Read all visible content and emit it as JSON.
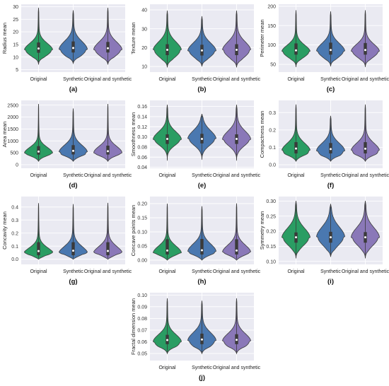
{
  "figure": {
    "palette": {
      "Original": "#2a9d63",
      "Synthetic": "#4a78b0",
      "Original and synthetic": "#8a78b8"
    },
    "plot_background": "#eaeaf2",
    "grid_color": "#ffffff"
  },
  "chart_data": [
    {
      "type": "violin",
      "panel_label": "(a)",
      "ylabel": "Radius mean",
      "categories": [
        "Original",
        "Synthetic",
        "Original and synthetic"
      ],
      "ylim": [
        4,
        31
      ],
      "yticks": [
        5,
        10,
        15,
        20,
        25,
        30
      ],
      "tick_decimals": 0,
      "grid": true,
      "series": [
        {
          "category": "Original",
          "min": 7,
          "q1": 11.7,
          "median": 13.4,
          "q3": 15.8,
          "max": 29.5,
          "mode": 12.7,
          "spread": 2.2
        },
        {
          "category": "Synthetic",
          "min": 7.5,
          "q1": 11.8,
          "median": 13.6,
          "q3": 16.2,
          "max": 28.5,
          "mode": 13.0,
          "spread": 2.6
        },
        {
          "category": "Original and synthetic",
          "min": 7,
          "q1": 11.8,
          "median": 13.5,
          "q3": 16,
          "max": 29.5,
          "mode": 12.9,
          "spread": 2.5
        }
      ]
    },
    {
      "type": "violin",
      "panel_label": "(b)",
      "ylabel": "Texture mean",
      "categories": [
        "Original",
        "Synthetic",
        "Original and synthetic"
      ],
      "ylim": [
        7,
        43
      ],
      "yticks": [
        10,
        20,
        30,
        40
      ],
      "tick_decimals": 0,
      "grid": true,
      "series": [
        {
          "category": "Original",
          "min": 9.5,
          "q1": 16,
          "median": 18.8,
          "q3": 21.8,
          "max": 39.5,
          "mode": 18.5,
          "spread": 3.6
        },
        {
          "category": "Synthetic",
          "min": 10,
          "q1": 15.8,
          "median": 18.5,
          "q3": 21.5,
          "max": 36.5,
          "mode": 18.2,
          "spread": 3.4
        },
        {
          "category": "Original and synthetic",
          "min": 9.5,
          "q1": 16,
          "median": 18.8,
          "q3": 21.8,
          "max": 39.5,
          "mode": 18.5,
          "spread": 3.6
        }
      ]
    },
    {
      "type": "violin",
      "panel_label": "(c)",
      "ylabel": "Perimeter mean",
      "categories": [
        "Original",
        "Synthetic",
        "Original and synthetic"
      ],
      "ylim": [
        30,
        205
      ],
      "yticks": [
        50,
        100,
        150,
        200
      ],
      "tick_decimals": 0,
      "grid": true,
      "series": [
        {
          "category": "Original",
          "min": 43,
          "q1": 75,
          "median": 86,
          "q3": 104,
          "max": 189,
          "mode": 82,
          "spread": 14
        },
        {
          "category": "Synthetic",
          "min": 45,
          "q1": 75,
          "median": 87,
          "q3": 106,
          "max": 186,
          "mode": 84,
          "spread": 16
        },
        {
          "category": "Original and synthetic",
          "min": 43,
          "q1": 75,
          "median": 87,
          "q3": 105,
          "max": 189,
          "mode": 83,
          "spread": 15
        }
      ]
    },
    {
      "type": "violin",
      "panel_label": "(d)",
      "ylabel": "Area mean",
      "categories": [
        "Original",
        "Synthetic",
        "Original and synthetic"
      ],
      "ylim": [
        -150,
        2700
      ],
      "yticks": [
        0,
        500,
        1000,
        1500,
        2000,
        2500
      ],
      "tick_decimals": 0,
      "grid": true,
      "series": [
        {
          "category": "Original",
          "min": 140,
          "q1": 420,
          "median": 550,
          "q3": 780,
          "max": 2550,
          "mode": 480,
          "spread": 200
        },
        {
          "category": "Synthetic",
          "min": 140,
          "q1": 430,
          "median": 580,
          "q3": 820,
          "max": 2350,
          "mode": 520,
          "spread": 240
        },
        {
          "category": "Original and synthetic",
          "min": 140,
          "q1": 425,
          "median": 565,
          "q3": 800,
          "max": 2550,
          "mode": 500,
          "spread": 220
        }
      ]
    },
    {
      "type": "violin",
      "panel_label": "(e)",
      "ylabel": "Smoothness mean",
      "categories": [
        "Original",
        "Synthetic",
        "Original and synthetic"
      ],
      "ylim": [
        0.038,
        0.172
      ],
      "yticks": [
        0.04,
        0.06,
        0.08,
        0.1,
        0.12,
        0.14,
        0.16
      ],
      "tick_decimals": 2,
      "grid": true,
      "series": [
        {
          "category": "Original",
          "min": 0.053,
          "q1": 0.086,
          "median": 0.096,
          "q3": 0.105,
          "max": 0.163,
          "mode": 0.095,
          "spread": 0.012
        },
        {
          "category": "Synthetic",
          "min": 0.055,
          "q1": 0.087,
          "median": 0.096,
          "q3": 0.106,
          "max": 0.145,
          "mode": 0.096,
          "spread": 0.013
        },
        {
          "category": "Original and synthetic",
          "min": 0.053,
          "q1": 0.086,
          "median": 0.096,
          "q3": 0.105,
          "max": 0.163,
          "mode": 0.095,
          "spread": 0.013
        }
      ]
    },
    {
      "type": "violin",
      "panel_label": "(f)",
      "ylabel": "Compactness mean",
      "categories": [
        "Original",
        "Synthetic",
        "Original and synthetic"
      ],
      "ylim": [
        -0.02,
        0.37
      ],
      "yticks": [
        0.0,
        0.1,
        0.2,
        0.3
      ],
      "tick_decimals": 1,
      "grid": true,
      "series": [
        {
          "category": "Original",
          "min": 0.02,
          "q1": 0.065,
          "median": 0.093,
          "q3": 0.13,
          "max": 0.345,
          "mode": 0.08,
          "spread": 0.035
        },
        {
          "category": "Synthetic",
          "min": 0.02,
          "q1": 0.065,
          "median": 0.09,
          "q3": 0.125,
          "max": 0.28,
          "mode": 0.08,
          "spread": 0.035
        },
        {
          "category": "Original and synthetic",
          "min": 0.02,
          "q1": 0.065,
          "median": 0.092,
          "q3": 0.13,
          "max": 0.345,
          "mode": 0.08,
          "spread": 0.035
        }
      ]
    },
    {
      "type": "violin",
      "panel_label": "(g)",
      "ylabel": "Concavity mean",
      "categories": [
        "Original",
        "Synthetic",
        "Original and synthetic"
      ],
      "ylim": [
        -0.04,
        0.48
      ],
      "yticks": [
        0.0,
        0.1,
        0.2,
        0.3,
        0.4
      ],
      "tick_decimals": 1,
      "grid": true,
      "series": [
        {
          "category": "Original",
          "min": 0.0,
          "q1": 0.03,
          "median": 0.062,
          "q3": 0.13,
          "max": 0.43,
          "mode": 0.035,
          "spread": 0.04
        },
        {
          "category": "Synthetic",
          "min": 0.0,
          "q1": 0.03,
          "median": 0.065,
          "q3": 0.13,
          "max": 0.42,
          "mode": 0.04,
          "spread": 0.045
        },
        {
          "category": "Original and synthetic",
          "min": 0.0,
          "q1": 0.03,
          "median": 0.063,
          "q3": 0.13,
          "max": 0.43,
          "mode": 0.04,
          "spread": 0.045
        }
      ]
    },
    {
      "type": "violin",
      "panel_label": "(h)",
      "ylabel": "Concave points mean",
      "categories": [
        "Original",
        "Synthetic",
        "Original and synthetic"
      ],
      "ylim": [
        -0.015,
        0.225
      ],
      "yticks": [
        0.0,
        0.05,
        0.1,
        0.15,
        0.2
      ],
      "tick_decimals": 2,
      "grid": true,
      "series": [
        {
          "category": "Original",
          "min": 0.0,
          "q1": 0.02,
          "median": 0.034,
          "q3": 0.074,
          "max": 0.2,
          "mode": 0.025,
          "spread": 0.02
        },
        {
          "category": "Synthetic",
          "min": 0.0,
          "q1": 0.02,
          "median": 0.035,
          "q3": 0.075,
          "max": 0.19,
          "mode": 0.03,
          "spread": 0.022
        },
        {
          "category": "Original and synthetic",
          "min": 0.0,
          "q1": 0.02,
          "median": 0.034,
          "q3": 0.074,
          "max": 0.2,
          "mode": 0.027,
          "spread": 0.021
        }
      ]
    },
    {
      "type": "violin",
      "panel_label": "(i)",
      "ylabel": "Symmetry mean",
      "categories": [
        "Original",
        "Synthetic",
        "Original and synthetic"
      ],
      "ylim": [
        0.09,
        0.315
      ],
      "yticks": [
        0.1,
        0.15,
        0.2,
        0.25,
        0.3
      ],
      "tick_decimals": 2,
      "grid": true,
      "series": [
        {
          "category": "Original",
          "min": 0.11,
          "q1": 0.162,
          "median": 0.18,
          "q3": 0.196,
          "max": 0.3,
          "mode": 0.178,
          "spread": 0.025
        },
        {
          "category": "Synthetic",
          "min": 0.115,
          "q1": 0.162,
          "median": 0.18,
          "q3": 0.198,
          "max": 0.29,
          "mode": 0.18,
          "spread": 0.027
        },
        {
          "category": "Original and synthetic",
          "min": 0.11,
          "q1": 0.162,
          "median": 0.18,
          "q3": 0.197,
          "max": 0.3,
          "mode": 0.179,
          "spread": 0.026
        }
      ]
    },
    {
      "type": "violin",
      "panel_label": "(j)",
      "ylabel": "Fractal dimension mean",
      "categories": [
        "Original",
        "Synthetic",
        "Original and synthetic"
      ],
      "ylim": [
        0.044,
        0.102
      ],
      "yticks": [
        0.05,
        0.06,
        0.07,
        0.08,
        0.09,
        0.1
      ],
      "tick_decimals": 2,
      "grid": true,
      "series": [
        {
          "category": "Original",
          "min": 0.05,
          "q1": 0.058,
          "median": 0.0615,
          "q3": 0.066,
          "max": 0.097,
          "mode": 0.06,
          "spread": 0.005
        },
        {
          "category": "Synthetic",
          "min": 0.05,
          "q1": 0.058,
          "median": 0.062,
          "q3": 0.067,
          "max": 0.095,
          "mode": 0.061,
          "spread": 0.0055
        },
        {
          "category": "Original and synthetic",
          "min": 0.05,
          "q1": 0.058,
          "median": 0.0617,
          "q3": 0.0665,
          "max": 0.097,
          "mode": 0.0605,
          "spread": 0.0052
        }
      ]
    }
  ]
}
